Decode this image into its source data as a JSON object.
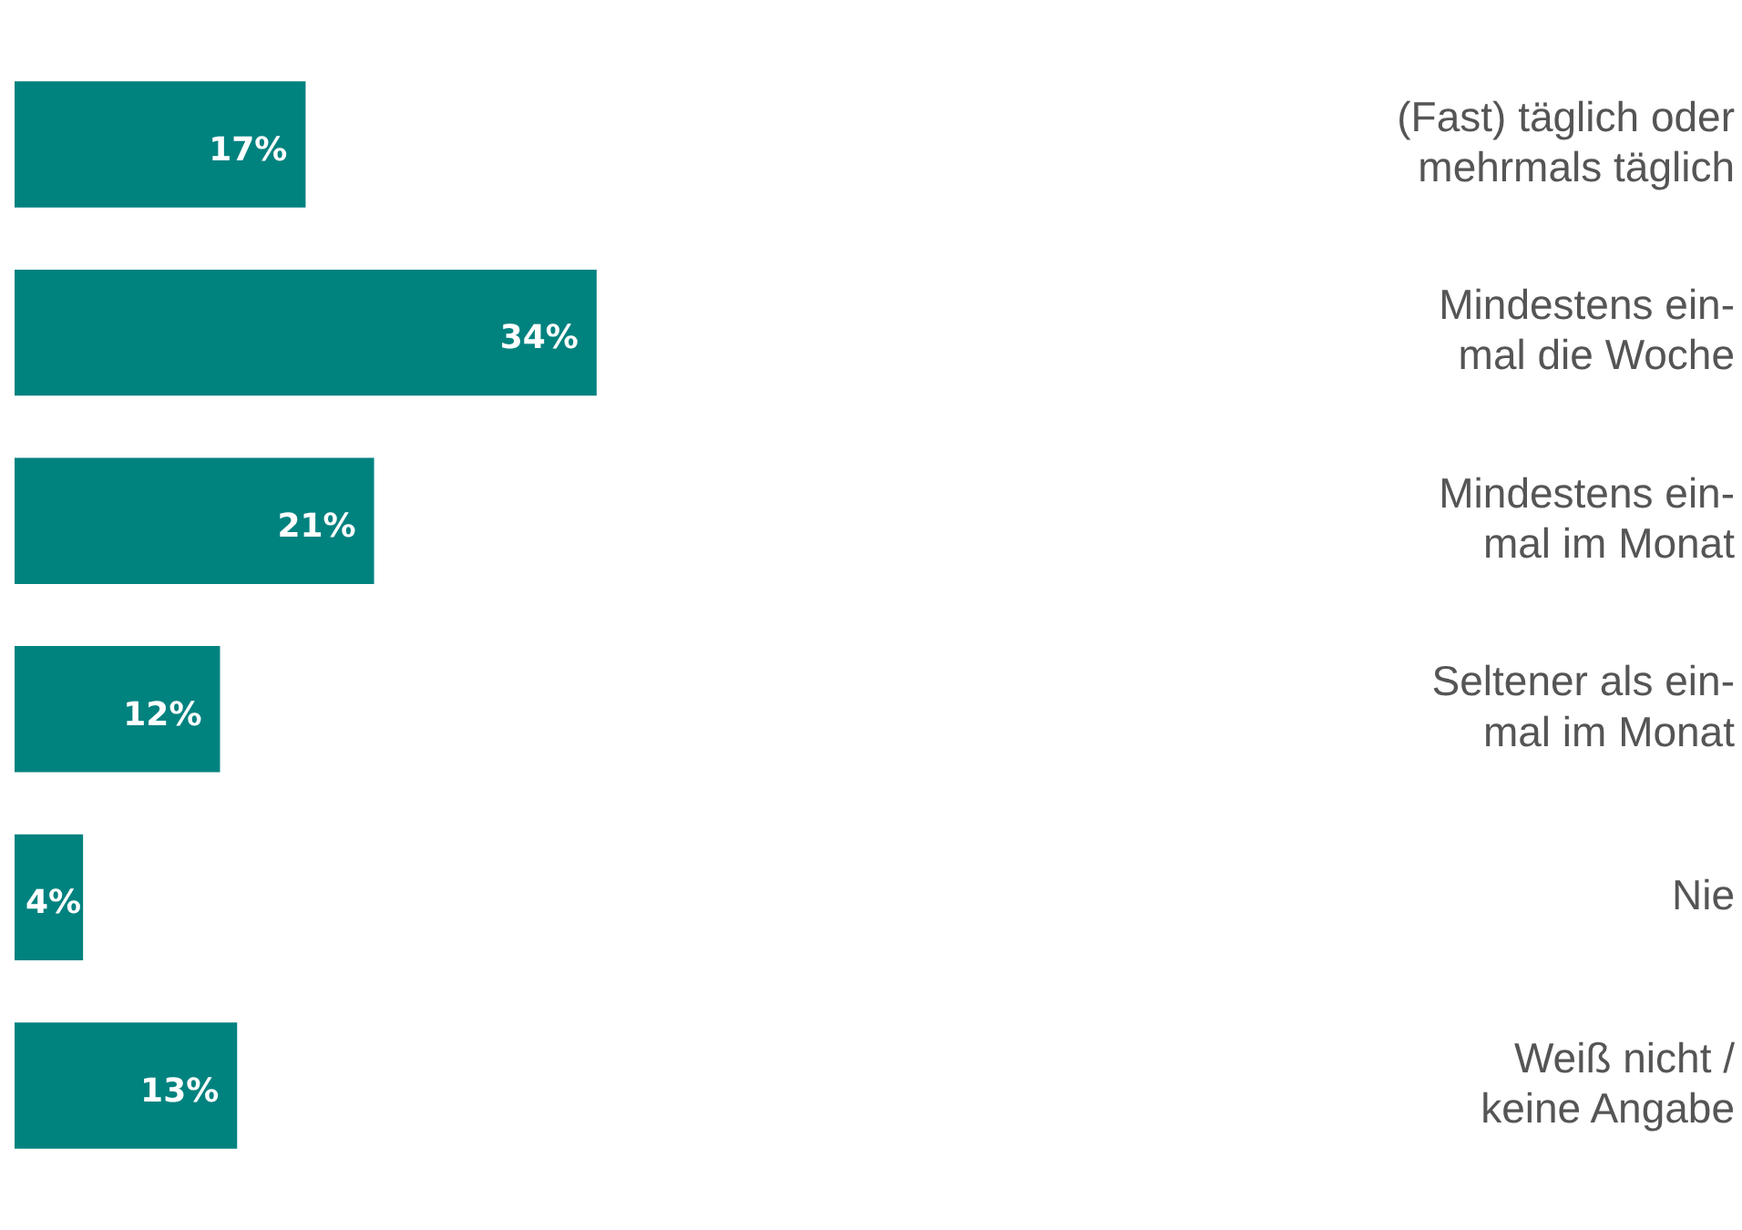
{
  "chart_data": {
    "type": "bar",
    "orientation": "horizontal",
    "categories": [
      "(Fast) täglich oder\nmehrmals täglich",
      "Mindestens ein-\nmal die Woche",
      "Mindestens ein-\nmal im Monat",
      "Seltener als ein-\nmal im Monat",
      "Nie",
      "Weiß nicht /\nkeine Angabe"
    ],
    "values": [
      17,
      34,
      21,
      12,
      4,
      13
    ],
    "value_labels": [
      "17%",
      "34%",
      "21%",
      "12%",
      "4%",
      "13%"
    ],
    "color": "#00827f",
    "grid": false,
    "legend": false
  }
}
